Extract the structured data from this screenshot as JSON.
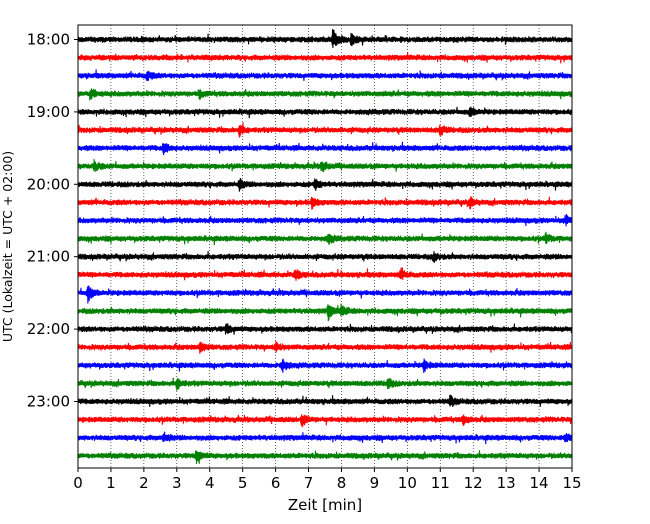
{
  "chart_data": {
    "type": "line",
    "xlabel": "Zeit  [min]",
    "ylabel": "UTC (Lokalzeit = UTC + 02:00)",
    "xlim": [
      0,
      15
    ],
    "xticks": [
      "0",
      "1",
      "2",
      "3",
      "4",
      "5",
      "6",
      "7",
      "8",
      "9",
      "10",
      "11",
      "12",
      "13",
      "14",
      "15"
    ],
    "row_minutes": 15,
    "rows_start": "18:00",
    "row_count": 24,
    "yticks": [
      {
        "label": "18:00",
        "row": 0
      },
      {
        "label": "19:00",
        "row": 4
      },
      {
        "label": "20:00",
        "row": 8
      },
      {
        "label": "21:00",
        "row": 12
      },
      {
        "label": "22:00",
        "row": 16
      },
      {
        "label": "23:00",
        "row": 20
      }
    ],
    "grid": "vertical dotted",
    "row_colors": [
      "#000000",
      "#ff0000",
      "#0000ff",
      "#008000"
    ],
    "events": [
      {
        "row": 0,
        "minute": 7.75,
        "amplitude": 1.0
      },
      {
        "row": 0,
        "minute": 8.3,
        "amplitude": 0.55
      },
      {
        "row": 2,
        "minute": 2.1,
        "amplitude": 0.45
      },
      {
        "row": 3,
        "minute": 0.4,
        "amplitude": 0.55
      },
      {
        "row": 3,
        "minute": 3.7,
        "amplitude": 0.4
      },
      {
        "row": 4,
        "minute": 11.9,
        "amplitude": 0.5
      },
      {
        "row": 5,
        "minute": 4.9,
        "amplitude": 0.6
      },
      {
        "row": 5,
        "minute": 11.0,
        "amplitude": 0.55
      },
      {
        "row": 6,
        "minute": 2.6,
        "amplitude": 0.6
      },
      {
        "row": 7,
        "minute": 0.5,
        "amplitude": 0.6
      },
      {
        "row": 7,
        "minute": 7.4,
        "amplitude": 0.6
      },
      {
        "row": 8,
        "minute": 4.9,
        "amplitude": 0.5
      },
      {
        "row": 8,
        "minute": 7.2,
        "amplitude": 0.55
      },
      {
        "row": 9,
        "minute": 7.1,
        "amplitude": 0.5
      },
      {
        "row": 9,
        "minute": 11.9,
        "amplitude": 0.5
      },
      {
        "row": 10,
        "minute": 14.8,
        "amplitude": 0.55
      },
      {
        "row": 11,
        "minute": 7.6,
        "amplitude": 0.55
      },
      {
        "row": 11,
        "minute": 14.2,
        "amplitude": 0.5
      },
      {
        "row": 12,
        "minute": 10.8,
        "amplitude": 0.45
      },
      {
        "row": 13,
        "minute": 6.6,
        "amplitude": 0.55
      },
      {
        "row": 13,
        "minute": 9.8,
        "amplitude": 0.55
      },
      {
        "row": 14,
        "minute": 0.3,
        "amplitude": 0.9
      },
      {
        "row": 15,
        "minute": 7.6,
        "amplitude": 0.8
      },
      {
        "row": 15,
        "minute": 8.0,
        "amplitude": 0.55
      },
      {
        "row": 16,
        "minute": 4.5,
        "amplitude": 0.55
      },
      {
        "row": 17,
        "minute": 3.7,
        "amplitude": 0.55
      },
      {
        "row": 17,
        "minute": 6.0,
        "amplitude": 0.5
      },
      {
        "row": 18,
        "minute": 6.2,
        "amplitude": 0.75
      },
      {
        "row": 18,
        "minute": 10.5,
        "amplitude": 0.55
      },
      {
        "row": 19,
        "minute": 3.0,
        "amplitude": 0.6
      },
      {
        "row": 19,
        "minute": 9.4,
        "amplitude": 0.55
      },
      {
        "row": 20,
        "minute": 11.3,
        "amplitude": 0.55
      },
      {
        "row": 21,
        "minute": 6.8,
        "amplitude": 0.6
      },
      {
        "row": 21,
        "minute": 11.7,
        "amplitude": 0.5
      },
      {
        "row": 22,
        "minute": 2.6,
        "amplitude": 0.5
      },
      {
        "row": 22,
        "minute": 14.8,
        "amplitude": 0.55
      },
      {
        "row": 23,
        "minute": 3.6,
        "amplitude": 0.75
      }
    ]
  }
}
